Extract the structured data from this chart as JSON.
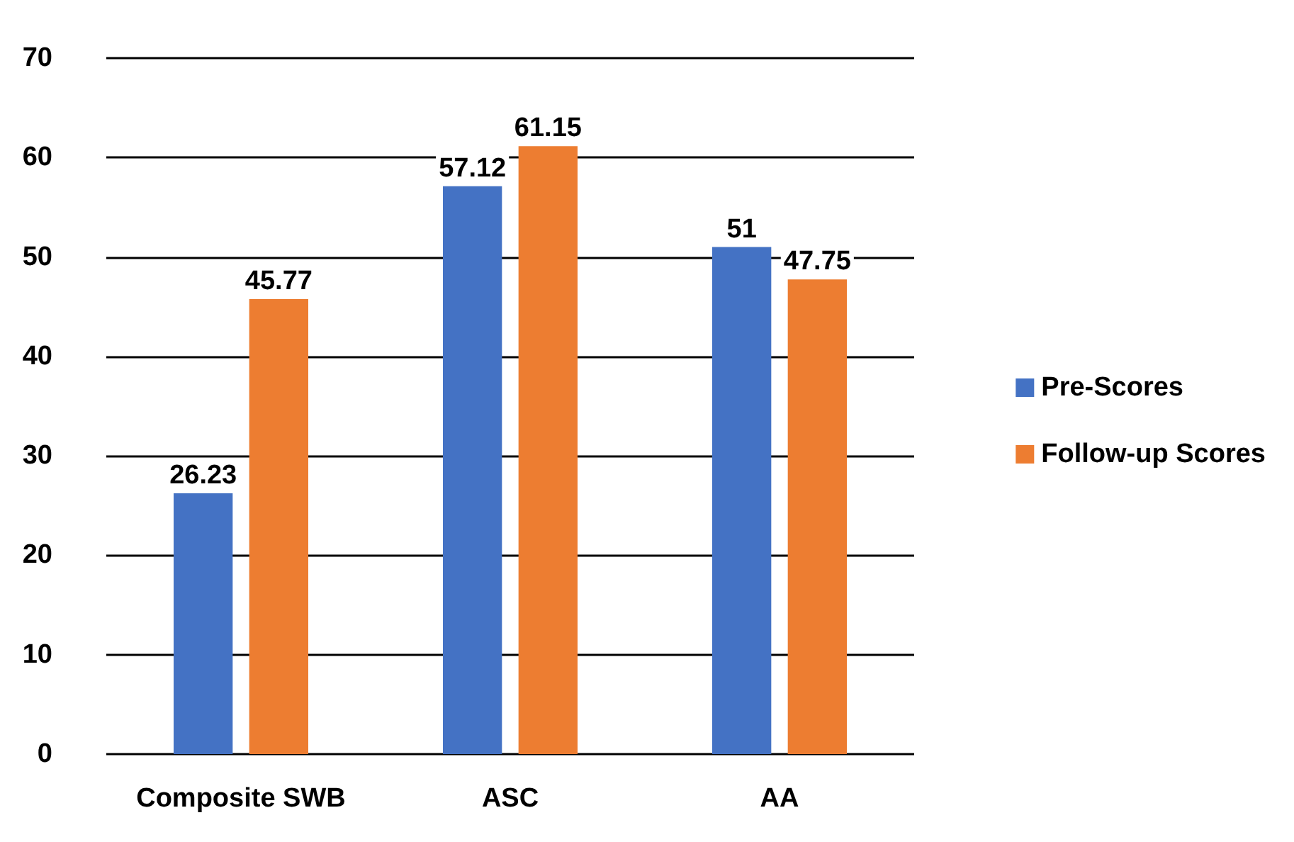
{
  "chart_data": {
    "type": "bar",
    "categories": [
      "Composite SWB",
      "ASC",
      "AA"
    ],
    "series": [
      {
        "name": "Pre-Scores",
        "color": "#4472c4",
        "values": [
          26.23,
          57.12,
          51
        ]
      },
      {
        "name": "Follow-up Scores",
        "color": "#ed7d31",
        "values": [
          45.77,
          61.15,
          47.75
        ]
      }
    ],
    "ylim": [
      0,
      70
    ],
    "yticks": [
      0,
      10,
      20,
      30,
      40,
      50,
      60,
      70
    ],
    "grid": "y",
    "legend": "right",
    "data_labels": true
  }
}
